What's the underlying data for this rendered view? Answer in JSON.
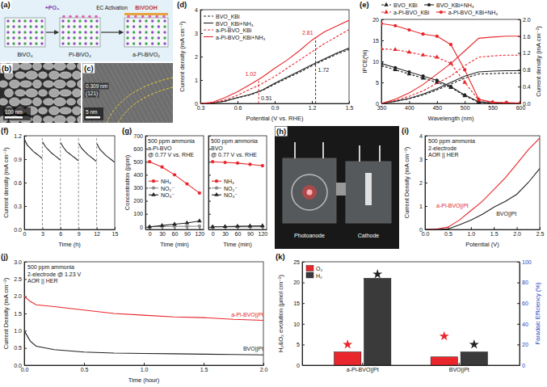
{
  "chart_data": [
    {
      "type": "line",
      "label": "(d)",
      "x": [
        0.3,
        0.4,
        0.5,
        0.6,
        0.7,
        0.8,
        0.9,
        1.0,
        1.1,
        1.2,
        1.3,
        1.4,
        1.5
      ],
      "xlabel": "Potential (V vs. RHE)",
      "ylabel": "Current density (mA cm⁻²)",
      "xlim": [
        0.3,
        1.5
      ],
      "xticks": [
        0.3,
        0.6,
        0.9,
        1.2,
        1.5
      ],
      "ylim": [
        0,
        4
      ],
      "yticks": [
        0,
        1,
        2,
        3,
        4
      ],
      "legend": "upper left",
      "series": [
        {
          "name": "BVO_KBi",
          "color": "#222222",
          "line_style": "dashed",
          "values": [
            0,
            0.02,
            0.1,
            0.24,
            0.36,
            0.55,
            0.82,
            1.08,
            1.33,
            1.6,
            1.86,
            2.1,
            2.3
          ]
        },
        {
          "name": "BVO_KBi+NH₃",
          "color": "#222222",
          "line_style": "solid",
          "values": [
            0,
            0.02,
            0.1,
            0.25,
            0.38,
            0.57,
            0.86,
            1.12,
            1.38,
            1.65,
            1.9,
            2.15,
            2.36
          ]
        },
        {
          "name": "a-Pi-BVO_KBi",
          "color": "#e8262b",
          "line_style": "dashed",
          "values": [
            0,
            0.03,
            0.15,
            0.35,
            0.6,
            0.85,
            1.15,
            1.5,
            1.85,
            2.2,
            2.55,
            2.85,
            3.15
          ]
        },
        {
          "name": "a-Pi-BVO_KBi+NH₃",
          "color": "#e8262b",
          "line_style": "solid",
          "values": [
            0,
            0.05,
            0.25,
            0.5,
            0.8,
            1.12,
            1.5,
            1.85,
            2.25,
            2.7,
            3.05,
            3.3,
            3.55
          ]
        }
      ],
      "vlines": [
        {
          "x": 0.77,
          "color": "#e8262b"
        },
        {
          "x": 1.23,
          "color": "#222222"
        }
      ],
      "annotations": [
        {
          "text": "1.02",
          "x": 0.77,
          "y": 1.02,
          "color": "#e8262b"
        },
        {
          "text": "0.51",
          "x": 0.77,
          "y": 0.51,
          "color": "#222222"
        },
        {
          "text": "2.81",
          "x": 1.23,
          "y": 2.81,
          "color": "#e8262b"
        },
        {
          "text": "1.72",
          "x": 1.23,
          "y": 1.72,
          "color": "#222222"
        }
      ]
    },
    {
      "type": "line",
      "label": "(e)",
      "x": [
        350,
        375,
        400,
        425,
        450,
        475,
        500,
        525,
        550,
        575,
        600
      ],
      "xlabel": "Wavelength (nm)",
      "ylabel": "IPCE(%)",
      "y2label": "Current density (mA cm⁻²)",
      "xlim": [
        350,
        600
      ],
      "xticks": [
        350,
        400,
        450,
        500,
        550,
        600
      ],
      "ylim": [
        0,
        20
      ],
      "yticks": [
        0,
        5,
        10,
        15,
        20
      ],
      "y2lim": [
        0,
        2
      ],
      "y2ticks": [
        {
          "value": 0,
          "label": "0.0"
        },
        0.4,
        0.8,
        1.2,
        1.6,
        {
          "value": 2,
          "label": "2.0"
        }
      ],
      "legend": "top",
      "series": [
        {
          "name": "BVO_KBi",
          "color": "#222222",
          "marker": "triangle",
          "line_style": "dashed",
          "values": [
            9,
            8,
            7,
            6,
            5,
            3.8,
            1.8,
            0.3,
            0.1,
            0,
            0
          ]
        },
        {
          "name": "BVO_KBi+NH₃",
          "color": "#222222",
          "marker": "circle",
          "line_style": "solid",
          "values": [
            9.5,
            8.5,
            7.5,
            6.5,
            5.5,
            4,
            2,
            0.4,
            0.1,
            0.1,
            0
          ]
        },
        {
          "name": "a-Pi-BVO_KBi",
          "color": "#e8262b",
          "marker": "triangle",
          "line_style": "dashed",
          "values": [
            13,
            12.8,
            12.2,
            11.5,
            11,
            9.5,
            5,
            0.8,
            0.2,
            0.1,
            0.1
          ]
        },
        {
          "name": "a-Pi-BVO_KBi+NH₃",
          "color": "#e8262b",
          "marker": "circle",
          "line_style": "solid",
          "values": [
            19,
            18.5,
            17.5,
            16.5,
            16,
            14,
            8,
            1,
            0.3,
            0.2,
            0.1
          ]
        },
        {
          "color": "#222222",
          "line_style": "dashed",
          "axis": "y2",
          "values": [
            0,
            0.05,
            0.11,
            0.2,
            0.32,
            0.46,
            0.6,
            0.7,
            0.71,
            0.72,
            0.72
          ]
        },
        {
          "color": "#222222",
          "line_style": "solid",
          "axis": "y2",
          "values": [
            0,
            0.05,
            0.12,
            0.22,
            0.35,
            0.5,
            0.65,
            0.75,
            0.77,
            0.78,
            0.78
          ]
        },
        {
          "color": "#e8262b",
          "line_style": "dashed",
          "axis": "y2",
          "values": [
            0,
            0.07,
            0.17,
            0.3,
            0.48,
            0.65,
            0.9,
            1.1,
            1.13,
            1.15,
            1.15
          ]
        },
        {
          "color": "#e8262b",
          "line_style": "solid",
          "axis": "y2",
          "values": [
            0,
            0.1,
            0.25,
            0.45,
            0.7,
            0.95,
            1.25,
            1.55,
            1.58,
            1.6,
            1.6
          ]
        }
      ]
    },
    {
      "type": "line",
      "label": "(f)",
      "x": [
        0.05,
        0.5,
        1,
        1.5,
        2,
        2.5,
        2.95,
        3,
        3.05,
        3.5,
        4,
        4.5,
        5,
        5.5,
        5.95,
        6,
        6.05,
        6.5,
        7,
        7.5,
        8,
        8.5,
        8.95,
        9,
        9.05,
        9.5,
        10,
        10.5,
        11,
        11.5,
        11.95,
        12,
        12.05,
        12.5,
        13,
        13.5,
        14,
        14.5,
        14.95
      ],
      "xlabel": "Time (h)",
      "ylabel": "Current density (mA cm⁻²)",
      "xlim": [
        0,
        15
      ],
      "xticks": [
        0,
        3,
        6,
        9,
        12,
        15
      ],
      "ylim": [
        0,
        1.2
      ],
      "yticks": [
        {
          "value": 0,
          "label": "0.0"
        },
        0.3,
        0.6,
        0.9,
        1.2
      ],
      "vlines": [
        3,
        6,
        9,
        12
      ],
      "series": [
        {
          "color": "#222222",
          "line_style": "solid",
          "values": [
            1.15,
            1.08,
            1.04,
            1.0,
            0.97,
            0.94,
            0.91,
            null,
            1.12,
            1.06,
            1.02,
            0.98,
            0.95,
            0.92,
            0.89,
            null,
            1.11,
            1.05,
            1.0,
            0.97,
            0.94,
            0.91,
            0.88,
            null,
            1.1,
            1.04,
            1.0,
            0.96,
            0.93,
            0.9,
            0.87,
            null,
            1.1,
            1.03,
            0.99,
            0.95,
            0.92,
            0.89,
            0.86
          ]
        }
      ]
    },
    {
      "type": "line",
      "label": "(g)",
      "x": [
        0,
        30,
        60,
        90,
        120
      ],
      "xlabel": "Time (min)",
      "ylabel": "Concentration (ppm)",
      "xlim": [
        -10,
        130
      ],
      "xticks": [
        0,
        30,
        60,
        90,
        120
      ],
      "ylim": [
        -20,
        700
      ],
      "yticks": [
        0,
        100,
        200,
        300,
        400,
        500,
        600,
        700
      ],
      "legend": "center left",
      "annotations": [
        "500 ppm ammonia",
        "a-Pi-BVO",
        "@ 0.77 V vs. RHE"
      ],
      "series": [
        {
          "name": "NH₃",
          "color": "#e8262b",
          "marker": "circle",
          "line_style": "solid",
          "values": [
            500,
            460,
            400,
            330,
            260
          ]
        },
        {
          "name": "NO₂⁻",
          "color": "#8c8c8c",
          "marker": "circle",
          "line_style": "solid",
          "values": [
            0,
            2,
            3,
            4,
            5
          ]
        },
        {
          "name": "NO₃⁻",
          "color": "#222222",
          "marker": "triangle",
          "line_style": "solid",
          "values": [
            0,
            10,
            20,
            30,
            45
          ]
        }
      ]
    },
    {
      "type": "line",
      "x": [
        0,
        30,
        60,
        90,
        120
      ],
      "tick_labels": "x",
      "xlabel": "Time (min)",
      "xlim": [
        -10,
        130
      ],
      "xticks": [
        0,
        30,
        60,
        90,
        120
      ],
      "ylim": [
        -20,
        700
      ],
      "yticks": [
        0,
        100,
        200,
        300,
        400,
        500,
        600,
        700
      ],
      "legend": "center left",
      "annotations": [
        "500 ppm ammonia",
        "BVO",
        "@ 0.77 V vs. RHE"
      ],
      "series": [
        {
          "name": "NH₃",
          "color": "#e8262b",
          "marker": "circle",
          "line_style": "solid",
          "values": [
            500,
            495,
            490,
            480,
            470
          ]
        },
        {
          "name": "NO₂⁻",
          "color": "#8c8c8c",
          "marker": "circle",
          "line_style": "solid",
          "values": [
            0,
            0,
            1,
            1,
            1
          ]
        },
        {
          "name": "NO₃⁻",
          "color": "#222222",
          "marker": "triangle",
          "line_style": "solid",
          "values": [
            0,
            2,
            4,
            6,
            8
          ]
        }
      ]
    },
    {
      "type": "line",
      "label": "(i)",
      "x": [
        0,
        0.25,
        0.5,
        0.75,
        1,
        1.25,
        1.5,
        1.75,
        2,
        2.25,
        2.5
      ],
      "xlabel": "Potential (V)",
      "ylabel": "Current Density (mA cm⁻²)",
      "xlim": [
        0,
        2.5
      ],
      "xticks": [
        {
          "value": 0,
          "label": "0.0"
        },
        0.5,
        {
          "value": 1,
          "label": "1.0"
        },
        1.5,
        {
          "value": 2,
          "label": "2.0"
        },
        2.5
      ],
      "ylim": [
        0,
        4
      ],
      "yticks": [
        0,
        1,
        2,
        3,
        4
      ],
      "legend": "inline",
      "annotations": [
        "500 ppm ammonia",
        "2-electrode",
        "AOR || HER"
      ],
      "series": [
        {
          "name": "a-Pi-BVO||Pt",
          "color": "#e8262b",
          "line_style": "solid",
          "values": [
            0,
            0.02,
            0.1,
            0.4,
            0.8,
            1.2,
            1.7,
            2.2,
            2.8,
            3.4,
            3.9
          ]
        },
        {
          "name": "BVO||Pt",
          "color": "#222222",
          "line_style": "solid",
          "values": [
            0,
            0,
            0.02,
            0.2,
            0.4,
            0.65,
            0.95,
            1.2,
            1.5,
            2.0,
            2.6
          ]
        }
      ]
    },
    {
      "type": "line",
      "label": "(j)",
      "x": [
        0,
        0.05,
        0.1,
        0.25,
        0.5,
        0.75,
        1,
        1.25,
        1.5,
        1.75,
        2
      ],
      "xlabel": "Time (hour)",
      "ylabel": "Current Density (mA cm⁻²)",
      "xlim": [
        0,
        2
      ],
      "xticks": [
        {
          "value": 0,
          "label": "0.0"
        },
        0.5,
        {
          "value": 1,
          "label": "1.0"
        },
        1.5,
        {
          "value": 2,
          "label": "2.0"
        }
      ],
      "ylim": [
        0,
        3
      ],
      "yticks": [
        {
          "value": 0,
          "label": "0.0"
        },
        0.5,
        {
          "value": 1,
          "label": "1.0"
        },
        1.5,
        {
          "value": 2,
          "label": "2.0"
        },
        2.5,
        {
          "value": 3,
          "label": "3.0"
        }
      ],
      "legend": "inline",
      "annotations": [
        "500 ppm ammonia",
        "2-electrode @ 1.23 V",
        "AOR || HER"
      ],
      "series": [
        {
          "name": "a-Pi-BVO||Pt",
          "color": "#e8262b",
          "line_style": "solid",
          "values": [
            2.0,
            1.85,
            1.75,
            1.7,
            1.6,
            1.5,
            1.45,
            1.4,
            1.38,
            1.33,
            1.3
          ]
        },
        {
          "name": "BVO||Pt",
          "color": "#222222",
          "line_style": "solid",
          "values": [
            1.0,
            0.7,
            0.55,
            0.45,
            0.38,
            0.35,
            0.34,
            0.33,
            0.32,
            0.31,
            0.3
          ]
        }
      ]
    },
    {
      "type": "bar",
      "label": "(k)",
      "categories": [
        "a-Pi-BVO||Pt",
        "BVO||Pt"
      ],
      "ylabel": "H₂&O₂ evolution (μmol cm⁻²)",
      "y2label": "Faradaic Efficiency (%)",
      "ylim": [
        0,
        25
      ],
      "yticks": [
        0,
        5,
        10,
        15,
        20,
        25
      ],
      "y2lim": [
        0,
        100
      ],
      "y2ticks": [
        0,
        20,
        40,
        60,
        80,
        100
      ],
      "legend": "upper left",
      "series": [
        {
          "name": "O₂",
          "color": "#e8262b",
          "values": [
            3.2,
            2.0
          ]
        },
        {
          "name": "H₂",
          "color": "#3a3a3a",
          "values": [
            21,
            3.2
          ]
        },
        {
          "color": "#e8262b",
          "axis": "y2",
          "type": "scatter",
          "marker": "star",
          "values": [
            20,
            28
          ]
        },
        {
          "color": "#222222",
          "axis": "y2",
          "type": "scatter",
          "marker": "star",
          "values": [
            88,
            20
          ]
        }
      ]
    }
  ],
  "images": {
    "a": {
      "label": "(a)",
      "materials": [
        "BiVO₄",
        "Pi-BiVO₄",
        "a-Pi-BiVO₄"
      ],
      "steps": [
        "+PO₄",
        "EC Activation"
      ],
      "product": "BiVOOH"
    },
    "b": {
      "label": "(b)",
      "scale_bar": "100 nm"
    },
    "c": {
      "label": "(c)",
      "scale_bar": "5 nm",
      "lattice": [
        "0.309 nm",
        "(121)"
      ]
    },
    "h": {
      "label": "(h)",
      "parts": [
        "Photoanode",
        "Cathode"
      ]
    }
  }
}
